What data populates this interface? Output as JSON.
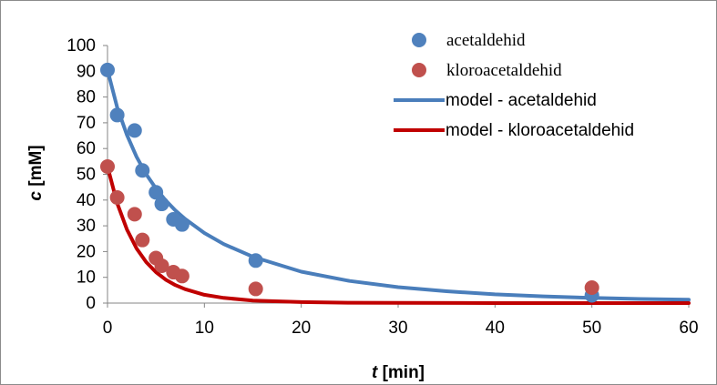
{
  "chart_data": {
    "type": "scatter",
    "xlabel": {
      "italic": "t",
      "rest": " [min]"
    },
    "ylabel": {
      "italic": "c",
      "rest": " [mM]"
    },
    "xlim": [
      0,
      60
    ],
    "ylim": [
      0,
      100
    ],
    "x_ticks": [
      0,
      10,
      20,
      30,
      40,
      50,
      60
    ],
    "y_ticks": [
      0,
      10,
      20,
      30,
      40,
      50,
      60,
      70,
      80,
      90,
      100
    ],
    "grid": false,
    "legend_position": "top-right",
    "series": [
      {
        "name": "acetaldehid",
        "kind": "points",
        "color": "#4f81bd",
        "x": [
          0,
          1,
          2.8,
          3.6,
          5,
          5.6,
          6.8,
          7.7,
          15.3,
          50
        ],
        "y": [
          90.5,
          73,
          67,
          51.5,
          43,
          38.5,
          32.5,
          30.5,
          16.5,
          3
        ]
      },
      {
        "name": "kloroacetaldehid",
        "kind": "points",
        "color": "#c0504d",
        "x": [
          0,
          1,
          2.8,
          3.6,
          5,
          5.6,
          6.8,
          7.7,
          15.3,
          50
        ],
        "y": [
          53,
          41,
          34.5,
          24.5,
          17.5,
          14.5,
          12,
          10.5,
          5.5,
          6
        ]
      },
      {
        "name": "model - acetaldehid",
        "kind": "line",
        "color": "#4a7ebb",
        "x": [
          0,
          1,
          2,
          3,
          4,
          5,
          6,
          7,
          8,
          10,
          12,
          15,
          20,
          25,
          30,
          35,
          40,
          45,
          50,
          55,
          60
        ],
        "y": [
          90.5,
          76,
          65.3,
          56.8,
          50,
          44.5,
          39.9,
          36,
          32.7,
          27.2,
          22.9,
          18,
          12.2,
          8.6,
          6.2,
          4.6,
          3.4,
          2.6,
          2,
          1.6,
          1.3
        ]
      },
      {
        "name": "model - kloroacetaldehid",
        "kind": "line",
        "color": "#c00000",
        "x": [
          0,
          1,
          2,
          3,
          4,
          5,
          6,
          7,
          8,
          10,
          12,
          15,
          20,
          25,
          30,
          40,
          50,
          60
        ],
        "y": [
          53,
          38.8,
          28.6,
          21.2,
          15.9,
          12,
          9.1,
          7,
          5.4,
          3.2,
          2,
          1,
          0.4,
          0.15,
          0.06,
          0.01,
          0,
          0
        ]
      }
    ]
  }
}
